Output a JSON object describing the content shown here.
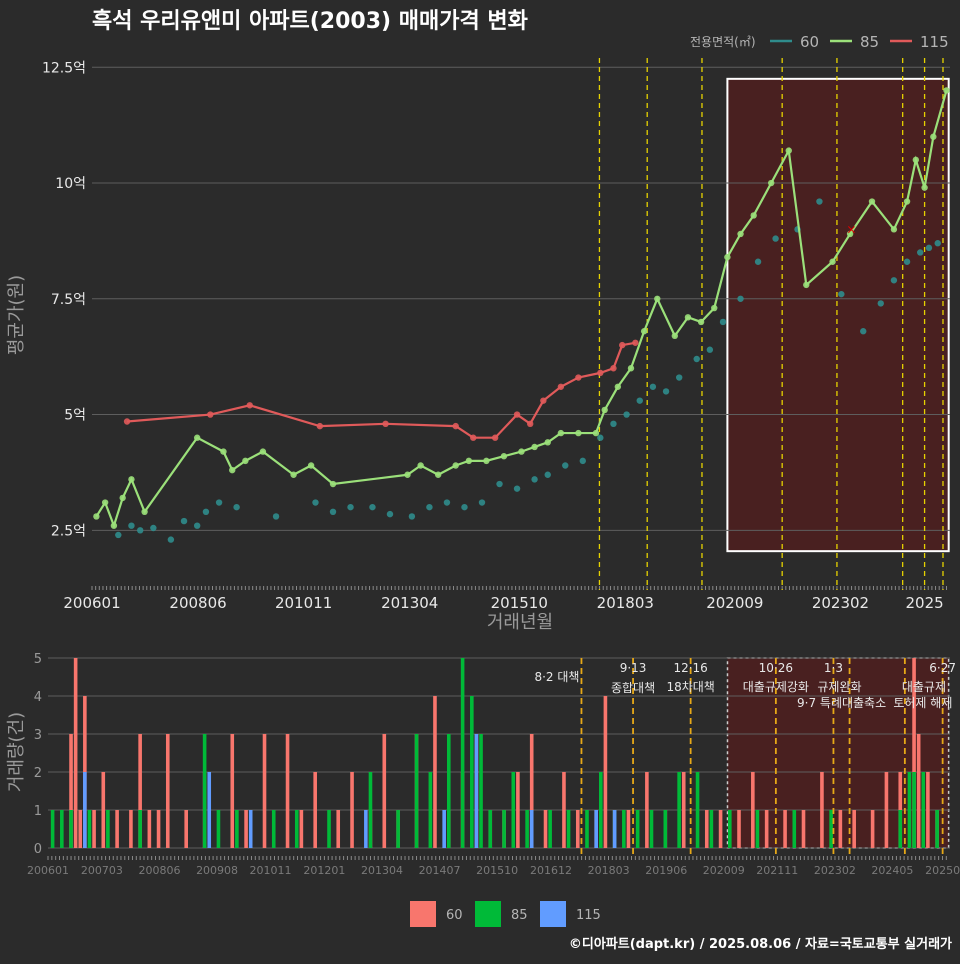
{
  "title": "흑석 우리유앤미 아파트(2003) 매매가격 변화",
  "legend_title": "전용면적(㎡)",
  "footer": "©디아파트(dapt.kr) / 2025.08.06 / 자료=국토교통부 실거래가",
  "colors": {
    "s60": "#2f8c8c",
    "s85": "#9be07a",
    "s115": "#e05a5a",
    "bar60": "#f8766d",
    "bar85": "#00ba38",
    "bar115": "#619cff",
    "vline": "#e6d200",
    "vline2": "#e6a817"
  },
  "chart_data": [
    {
      "type": "line",
      "title": "흑석 우리유앤미 아파트(2003) 매매가격 변화",
      "xlabel": "거래년월",
      "ylabel": "평균가(원)",
      "xlim": [
        2006.0,
        2025.58
      ],
      "ylim": [
        1.6,
        12.7
      ],
      "yticks": [
        2.5,
        5,
        7.5,
        10,
        12.5
      ],
      "ytick_labels": [
        "2.5억",
        "5억",
        "7.5억",
        "10억",
        "12.5억"
      ],
      "xticks": [
        2006.0,
        2008.42,
        2010.83,
        2013.25,
        2015.75,
        2018.17,
        2020.67,
        2023.08,
        2025.0
      ],
      "xtick_labels": [
        "200601",
        "200806",
        "201011",
        "201304",
        "201510",
        "201803",
        "202009",
        "202302",
        "2025"
      ],
      "legend": [
        "60",
        "85",
        "115"
      ],
      "highlight_region": [
        2020.5,
        2025.55,
        2.05,
        12.25
      ],
      "vlines": [
        2017.58,
        2018.67,
        2019.92,
        2021.75,
        2023.0,
        2024.5,
        2025.0,
        2025.42
      ],
      "marker_x": [
        2023.33,
        9.0
      ],
      "series": [
        {
          "name": "60",
          "x": [
            2006.6,
            2006.9,
            2007.1,
            2007.4,
            2007.8,
            2008.1,
            2008.4,
            2008.6,
            2008.9,
            2009.3,
            2010.2,
            2011.1,
            2011.5,
            2011.9,
            2012.4,
            2012.8,
            2013.3,
            2013.7,
            2014.1,
            2014.5,
            2014.9,
            2015.3,
            2015.7,
            2016.1,
            2016.4,
            2016.8,
            2017.2,
            2017.6,
            2017.9,
            2018.2,
            2018.5,
            2018.8,
            2019.1,
            2019.4,
            2019.8,
            2020.1,
            2020.4,
            2020.8,
            2021.2,
            2021.6,
            2022.1,
            2022.6,
            2023.1,
            2023.6,
            2024.0,
            2024.3,
            2024.6,
            2024.9,
            2025.1,
            2025.3
          ],
          "y": [
            2.4,
            2.6,
            2.5,
            2.55,
            2.3,
            2.7,
            2.6,
            2.9,
            3.1,
            3.0,
            2.8,
            3.1,
            2.9,
            3.0,
            3.0,
            2.85,
            2.8,
            3.0,
            3.1,
            3.0,
            3.1,
            3.5,
            3.4,
            3.6,
            3.7,
            3.9,
            4.0,
            4.5,
            4.8,
            5.0,
            5.3,
            5.6,
            5.5,
            5.8,
            6.2,
            6.4,
            7.0,
            7.5,
            8.3,
            8.8,
            9.0,
            9.6,
            7.6,
            6.8,
            7.4,
            7.9,
            8.3,
            8.5,
            8.6,
            8.7
          ]
        },
        {
          "name": "85",
          "x": [
            2006.1,
            2006.3,
            2006.5,
            2006.7,
            2006.9,
            2007.2,
            2008.4,
            2009.0,
            2009.2,
            2009.5,
            2009.9,
            2010.6,
            2011.0,
            2011.5,
            2013.2,
            2013.5,
            2013.9,
            2014.3,
            2014.6,
            2015.0,
            2015.4,
            2015.8,
            2016.1,
            2016.4,
            2016.7,
            2017.1,
            2017.5,
            2017.7,
            2018.0,
            2018.3,
            2018.6,
            2018.9,
            2019.3,
            2019.6,
            2019.9,
            2020.2,
            2020.5,
            2020.8,
            2021.1,
            2021.5,
            2021.9,
            2022.3,
            2022.9,
            2023.3,
            2023.8,
            2024.3,
            2024.6,
            2024.8,
            2025.0,
            2025.2,
            2025.5
          ],
          "y": [
            2.8,
            3.1,
            2.6,
            3.2,
            3.6,
            2.9,
            4.5,
            4.2,
            3.8,
            4.0,
            4.2,
            3.7,
            3.9,
            3.5,
            3.7,
            3.9,
            3.7,
            3.9,
            4.0,
            4.0,
            4.1,
            4.2,
            4.3,
            4.4,
            4.6,
            4.6,
            4.6,
            5.1,
            5.6,
            6.0,
            6.8,
            7.5,
            6.7,
            7.1,
            7.0,
            7.3,
            8.4,
            8.9,
            9.3,
            10.0,
            10.7,
            7.8,
            8.3,
            8.9,
            9.6,
            9.0,
            9.6,
            10.5,
            9.9,
            11.0,
            12.0
          ]
        },
        {
          "name": "115",
          "x": [
            2006.8,
            2008.7,
            2009.6,
            2011.2,
            2012.7,
            2014.3,
            2014.7,
            2015.2,
            2015.7,
            2016.0,
            2016.3,
            2016.7,
            2017.1,
            2017.6,
            2017.9,
            2018.1,
            2018.4
          ],
          "y": [
            4.85,
            5.0,
            5.2,
            4.75,
            4.8,
            4.75,
            4.5,
            4.5,
            5.0,
            4.8,
            5.3,
            5.6,
            5.8,
            5.9,
            6.0,
            6.5,
            6.55
          ]
        }
      ]
    },
    {
      "type": "bar",
      "ylabel": "거래량(건)",
      "xlim": [
        2006.0,
        2025.58
      ],
      "ylim": [
        0,
        5
      ],
      "yticks": [
        0,
        1,
        2,
        3,
        4,
        5
      ],
      "xticks": [
        2006.0,
        2007.17,
        2008.42,
        2009.67,
        2010.83,
        2012.0,
        2013.25,
        2014.5,
        2015.75,
        2016.92,
        2018.17,
        2019.42,
        2020.67,
        2021.83,
        2023.08,
        2024.33,
        2025.42
      ],
      "xtick_labels": [
        "200601",
        "200703",
        "200806",
        "200908",
        "201011",
        "201201",
        "201304",
        "201407",
        "201510",
        "201612",
        "201803",
        "201906",
        "202009",
        "202111",
        "202302",
        "202405",
        "20250"
      ],
      "legend": [
        "60",
        "85",
        "115"
      ],
      "highlight_region": [
        2020.75,
        2025.55
      ],
      "policies": [
        {
          "x": 2017.58,
          "date": "",
          "label": "8·2 대책"
        },
        {
          "x": 2018.7,
          "date": "9·13",
          "label": "종합대책"
        },
        {
          "x": 2019.95,
          "date": "12·16",
          "label": "18차대책"
        },
        {
          "x": 2021.8,
          "date": "10·26",
          "label": "대출규제강화"
        },
        {
          "x": 2023.05,
          "date": "1·3",
          "label": "규제완화"
        },
        {
          "x": 2023.4,
          "date": "",
          "label": "9·7 특례대출축소"
        },
        {
          "x": 2024.6,
          "date": "",
          "label": "토허제 해제"
        },
        {
          "x": 2025.42,
          "date": "6·27",
          "label": "대출규제"
        }
      ],
      "series": [
        {
          "name": "60",
          "x": [
            2006.5,
            2006.6,
            2006.7,
            2006.8,
            2007.0,
            2007.2,
            2007.5,
            2007.8,
            2008.0,
            2008.2,
            2008.4,
            2008.6,
            2009.0,
            2009.4,
            2010.0,
            2010.3,
            2010.7,
            2011.2,
            2011.5,
            2011.8,
            2012.3,
            2012.6,
            2013.0,
            2013.3,
            2013.6,
            2014.0,
            2014.4,
            2014.7,
            2015.0,
            2015.3,
            2015.6,
            2015.9,
            2016.2,
            2016.5,
            2016.8,
            2017.2,
            2017.5,
            2017.9,
            2018.1,
            2018.3,
            2018.6,
            2019.0,
            2019.4,
            2019.8,
            2020.3,
            2020.6,
            2021.0,
            2021.3,
            2021.6,
            2022.0,
            2022.4,
            2022.8,
            2023.2,
            2023.5,
            2023.9,
            2024.2,
            2024.5,
            2024.8,
            2024.9,
            2025.1,
            2025.3
          ],
          "y": [
            3,
            5,
            1,
            4,
            1,
            2,
            1,
            1,
            3,
            1,
            1,
            3,
            1,
            2,
            3,
            1,
            3,
            3,
            1,
            2,
            1,
            2,
            1,
            3,
            1,
            3,
            4,
            1,
            2,
            3,
            1,
            1,
            2,
            3,
            1,
            2,
            1,
            1,
            4,
            1,
            1,
            2,
            1,
            2,
            1,
            1,
            1,
            2,
            1,
            1,
            1,
            2,
            1,
            1,
            1,
            2,
            2,
            5,
            3,
            2,
            1
          ]
        },
        {
          "name": "85",
          "x": [
            2006.1,
            2006.3,
            2006.5,
            2006.9,
            2007.3,
            2008.0,
            2009.4,
            2009.7,
            2010.1,
            2010.9,
            2011.4,
            2012.1,
            2013.0,
            2013.6,
            2014.0,
            2014.3,
            2014.7,
            2015.0,
            2015.2,
            2015.4,
            2015.6,
            2015.9,
            2016.1,
            2016.4,
            2016.9,
            2017.3,
            2017.7,
            2018.0,
            2018.3,
            2018.5,
            2018.8,
            2019.1,
            2019.4,
            2019.7,
            2020.1,
            2020.4,
            2020.8,
            2021.4,
            2022.2,
            2023.0,
            2024.5,
            2024.7,
            2024.8,
            2025.0,
            2025.3
          ],
          "y": [
            1,
            1,
            1,
            1,
            1,
            1,
            3,
            1,
            1,
            1,
            1,
            1,
            2,
            1,
            3,
            2,
            3,
            5,
            4,
            3,
            1,
            1,
            2,
            1,
            1,
            1,
            1,
            2,
            1,
            1,
            1,
            1,
            1,
            2,
            2,
            1,
            1,
            1,
            1,
            1,
            1,
            2,
            2,
            2,
            1
          ]
        },
        {
          "name": "115",
          "x": [
            2006.8,
            2009.5,
            2010.4,
            2012.9,
            2014.6,
            2015.3,
            2016.5,
            2017.9,
            2018.3
          ],
          "y": [
            2,
            2,
            1,
            1,
            1,
            3,
            1,
            1,
            1
          ]
        }
      ]
    }
  ]
}
